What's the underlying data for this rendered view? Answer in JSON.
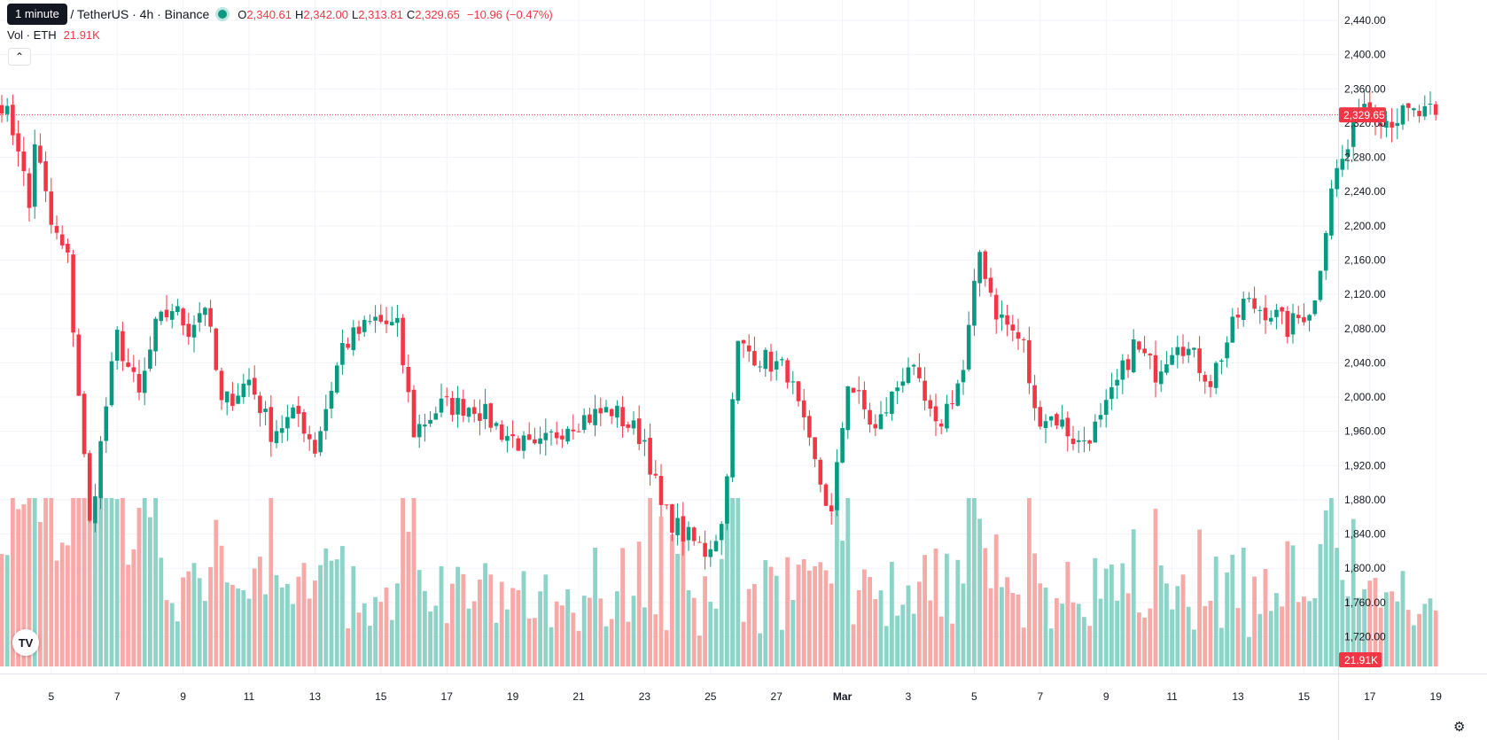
{
  "header": {
    "tooltip": "1 minute",
    "symbol": "um / TetherUS · 4h · Binance",
    "o_key": "O",
    "o_val": "2,340.61",
    "h_key": "H",
    "h_val": "2,342.00",
    "l_key": "L",
    "l_val": "2,313.81",
    "c_key": "C",
    "c_val": "2,329.65",
    "change": "−10.96 (−0.47%)",
    "vol_label": "Vol · ETH",
    "vol_value": "21.91K",
    "collapse_icon": "chevron-up-icon",
    "logo_text": "TV",
    "settings_icon": "gear-icon"
  },
  "colors": {
    "up": "#089981",
    "down": "#f23645",
    "vol_up": "#8dd3c8",
    "vol_down": "#f7a9a7",
    "grid": "#f0f3fa"
  },
  "chart_data": {
    "type": "candlestick",
    "price_axis": {
      "min": 1680,
      "max": 2460,
      "ticks": [
        2440,
        2400,
        2360,
        2320,
        2280,
        2240,
        2200,
        2160,
        2120,
        2080,
        2040,
        2000,
        1960,
        1920,
        1880,
        1840,
        1800,
        1760,
        1720
      ],
      "tick_labels": [
        "2,440.00",
        "2,400.00",
        "2,360.00",
        "2,320.00",
        "2,280.00",
        "2,240.00",
        "2,200.00",
        "2,160.00",
        "2,120.00",
        "2,080.00",
        "2,040.00",
        "2,000.00",
        "1,960.00",
        "1,920.00",
        "1,880.00",
        "1,840.00",
        "1,800.00",
        "1,760.00",
        "1,720.00"
      ]
    },
    "time_axis": {
      "labels": [
        "5",
        "7",
        "9",
        "11",
        "13",
        "15",
        "17",
        "19",
        "21",
        "23",
        "25",
        "27",
        "Mar",
        "3",
        "5",
        "7",
        "9",
        "11",
        "13",
        "15",
        "17",
        "19"
      ],
      "label_index": [
        9,
        21,
        33,
        45,
        57,
        69,
        81,
        93,
        105,
        117,
        129,
        141,
        153,
        165,
        177,
        189,
        201,
        213,
        225,
        237,
        249,
        261
      ]
    },
    "last_price": 2329.65,
    "last_price_label": "2,329.65",
    "last_volume_label": "21.91K",
    "keypoints": [
      [
        0,
        2345
      ],
      [
        3,
        2295
      ],
      [
        5,
        2220
      ],
      [
        6,
        2300
      ],
      [
        9,
        2200
      ],
      [
        12,
        2160
      ],
      [
        16,
        1850
      ],
      [
        19,
        1990
      ],
      [
        21,
        2070
      ],
      [
        25,
        2000
      ],
      [
        28,
        2080
      ],
      [
        31,
        2105
      ],
      [
        34,
        2080
      ],
      [
        37,
        2110
      ],
      [
        40,
        1990
      ],
      [
        45,
        2020
      ],
      [
        49,
        1960
      ],
      [
        54,
        1980
      ],
      [
        57,
        1940
      ],
      [
        62,
        2060
      ],
      [
        68,
        2090
      ],
      [
        72,
        2080
      ],
      [
        75,
        1960
      ],
      [
        80,
        1990
      ],
      [
        86,
        1990
      ],
      [
        91,
        1960
      ],
      [
        97,
        1935
      ],
      [
        103,
        1970
      ],
      [
        111,
        1985
      ],
      [
        117,
        1950
      ],
      [
        120,
        1870
      ],
      [
        124,
        1840
      ],
      [
        128,
        1820
      ],
      [
        131,
        1850
      ],
      [
        134,
        2060
      ],
      [
        137,
        2050
      ],
      [
        143,
        2030
      ],
      [
        147,
        1940
      ],
      [
        151,
        1860
      ],
      [
        154,
        2020
      ],
      [
        159,
        1960
      ],
      [
        165,
        2040
      ],
      [
        170,
        1960
      ],
      [
        175,
        2030
      ],
      [
        178,
        2170
      ],
      [
        181,
        2100
      ],
      [
        186,
        2060
      ],
      [
        188,
        1980
      ],
      [
        192,
        1975
      ],
      [
        196,
        1945
      ],
      [
        200,
        1970
      ],
      [
        206,
        2060
      ],
      [
        210,
        2030
      ],
      [
        214,
        2070
      ],
      [
        220,
        2020
      ],
      [
        226,
        2110
      ],
      [
        231,
        2100
      ],
      [
        234,
        2080
      ],
      [
        239,
        2110
      ],
      [
        242,
        2250
      ],
      [
        245,
        2290
      ],
      [
        247,
        2350
      ],
      [
        252,
        2325
      ],
      [
        256,
        2330
      ]
    ],
    "volume_scale_max": 170
  }
}
